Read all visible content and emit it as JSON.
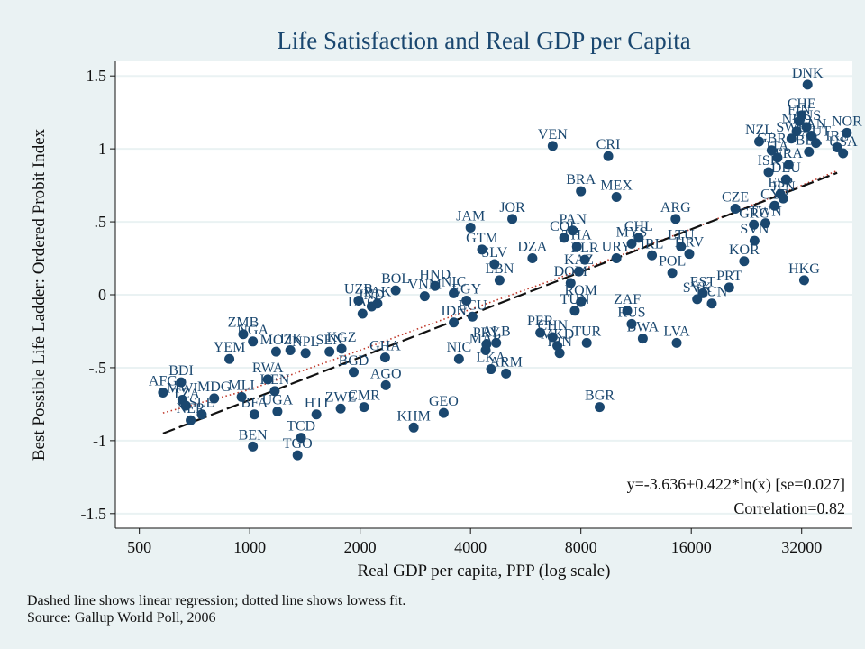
{
  "chart_data": {
    "type": "scatter",
    "title": "Life Satisfaction and Real GDP per Capita",
    "xlabel": "Real GDP per capita, PPP (log scale)",
    "ylabel": "Best Possible Life Ladder: Ordered Probit Index",
    "x_scale": "log",
    "xlim": [
      430,
      44000
    ],
    "ylim": [
      -1.6,
      1.6
    ],
    "x_ticks": [
      500,
      1000,
      2000,
      4000,
      8000,
      16000,
      32000
    ],
    "x_tick_labels": [
      "500",
      "1000",
      "2000",
      "4000",
      "8000",
      "16000",
      "32000"
    ],
    "y_ticks": [
      1.5,
      1,
      0.5,
      0,
      -0.5,
      -1,
      -1.5
    ],
    "y_tick_labels": [
      "1.5",
      "1",
      ".5",
      "0",
      "-.5",
      "-1",
      "-1.5"
    ],
    "grid": true,
    "marker_color": "#1a476f",
    "regression": {
      "label": "y=-3.636+0.422*ln(x) [se=0.027]",
      "intercept": -3.636,
      "slope": 0.422,
      "x_range": [
        580,
        40000
      ],
      "style": "dashed"
    },
    "correlation_label": "Correlation=0.82",
    "lowess": {
      "style": "dotted",
      "color": "#c0392b",
      "points": [
        [
          580,
          -0.81
        ],
        [
          1000,
          -0.65
        ],
        [
          2000,
          -0.38
        ],
        [
          4000,
          -0.1
        ],
        [
          8000,
          0.17
        ],
        [
          16000,
          0.45
        ],
        [
          32000,
          0.75
        ],
        [
          40000,
          0.85
        ]
      ]
    },
    "points": [
      {
        "label": "AFG",
        "x": 580,
        "y": -0.67
      },
      {
        "label": "MWI",
        "x": 655,
        "y": -0.72
      },
      {
        "label": "BDI",
        "x": 650,
        "y": -0.6
      },
      {
        "label": "TZA",
        "x": 670,
        "y": -0.76
      },
      {
        "label": "NER",
        "x": 690,
        "y": -0.86
      },
      {
        "label": "SLE",
        "x": 740,
        "y": -0.82
      },
      {
        "label": "MDG",
        "x": 800,
        "y": -0.71
      },
      {
        "label": "MLI",
        "x": 950,
        "y": -0.7
      },
      {
        "label": "BFA",
        "x": 1030,
        "y": -0.82
      },
      {
        "label": "BEN",
        "x": 1020,
        "y": -1.04
      },
      {
        "label": "YEM",
        "x": 880,
        "y": -0.44
      },
      {
        "label": "ZMB",
        "x": 960,
        "y": -0.27
      },
      {
        "label": "NGA",
        "x": 1020,
        "y": -0.32
      },
      {
        "label": "MOZ",
        "x": 1180,
        "y": -0.39
      },
      {
        "label": "RWA",
        "x": 1120,
        "y": -0.58
      },
      {
        "label": "KEN",
        "x": 1170,
        "y": -0.66
      },
      {
        "label": "UGA",
        "x": 1190,
        "y": -0.8
      },
      {
        "label": "HTI",
        "x": 1520,
        "y": -0.82
      },
      {
        "label": "TCD",
        "x": 1380,
        "y": -0.98
      },
      {
        "label": "TGO",
        "x": 1350,
        "y": -1.1
      },
      {
        "label": "TJK",
        "x": 1290,
        "y": -0.38
      },
      {
        "label": "KHM",
        "x": 2800,
        "y": -0.91
      },
      {
        "label": "NPL",
        "x": 1420,
        "y": -0.4
      },
      {
        "label": "SEN",
        "x": 1650,
        "y": -0.39
      },
      {
        "label": "KGZ",
        "x": 1780,
        "y": -0.37
      },
      {
        "label": "ZWE",
        "x": 1770,
        "y": -0.78
      },
      {
        "label": "CMR",
        "x": 2050,
        "y": -0.77
      },
      {
        "label": "BGD",
        "x": 1920,
        "y": -0.53
      },
      {
        "label": "GHA",
        "x": 2340,
        "y": -0.43
      },
      {
        "label": "AGO",
        "x": 2350,
        "y": -0.62
      },
      {
        "label": "GEO",
        "x": 3380,
        "y": -0.81
      },
      {
        "label": "UZB",
        "x": 1980,
        "y": -0.04
      },
      {
        "label": "LAO",
        "x": 2030,
        "y": -0.13
      },
      {
        "label": "IND",
        "x": 2150,
        "y": -0.08
      },
      {
        "label": "PAK",
        "x": 2230,
        "y": -0.06
      },
      {
        "label": "BOL",
        "x": 2500,
        "y": 0.03
      },
      {
        "label": "VNM",
        "x": 3000,
        "y": -0.01
      },
      {
        "label": "HND",
        "x": 3200,
        "y": 0.06
      },
      {
        "label": "NIC",
        "x": 3600,
        "y": 0.01
      },
      {
        "label": "EGY",
        "x": 3900,
        "y": -0.04
      },
      {
        "label": "IDN",
        "x": 3600,
        "y": -0.19
      },
      {
        "label": "ECU",
        "x": 4050,
        "y": -0.15
      },
      {
        "label": "NIC",
        "x": 3720,
        "y": -0.44
      },
      {
        "label": "PRY",
        "x": 4420,
        "y": -0.34
      },
      {
        "label": "ALB",
        "x": 4700,
        "y": -0.33
      },
      {
        "label": "MAR",
        "x": 4400,
        "y": -0.38
      },
      {
        "label": "LKA",
        "x": 4550,
        "y": -0.51
      },
      {
        "label": "ARM",
        "x": 5000,
        "y": -0.54
      },
      {
        "label": "JAM",
        "x": 4000,
        "y": 0.46
      },
      {
        "label": "GTM",
        "x": 4300,
        "y": 0.31
      },
      {
        "label": "SLV",
        "x": 4650,
        "y": 0.21
      },
      {
        "label": "LBN",
        "x": 4800,
        "y": 0.1
      },
      {
        "label": "JOR",
        "x": 5200,
        "y": 0.52
      },
      {
        "label": "DZA",
        "x": 5900,
        "y": 0.25
      },
      {
        "label": "PER",
        "x": 6200,
        "y": -0.26
      },
      {
        "label": "CHN",
        "x": 6700,
        "y": -0.29
      },
      {
        "label": "IRN",
        "x": 7000,
        "y": -0.4
      },
      {
        "label": "MKD",
        "x": 6900,
        "y": -0.35
      },
      {
        "label": "VEN",
        "x": 6700,
        "y": 1.02
      },
      {
        "label": "CRI",
        "x": 9500,
        "y": 0.95
      },
      {
        "label": "BRA",
        "x": 8000,
        "y": 0.71
      },
      {
        "label": "MEX",
        "x": 10000,
        "y": 0.67
      },
      {
        "label": "PAN",
        "x": 7600,
        "y": 0.44
      },
      {
        "label": "COL",
        "x": 7200,
        "y": 0.39
      },
      {
        "label": "THA",
        "x": 7800,
        "y": 0.33
      },
      {
        "label": "BLR",
        "x": 8200,
        "y": 0.24
      },
      {
        "label": "KAZ",
        "x": 7900,
        "y": 0.16
      },
      {
        "label": "DOM",
        "x": 7500,
        "y": 0.08
      },
      {
        "label": "ROM",
        "x": 8000,
        "y": -0.05
      },
      {
        "label": "TUN",
        "x": 7700,
        "y": -0.11
      },
      {
        "label": "TUR",
        "x": 8300,
        "y": -0.33
      },
      {
        "label": "BGR",
        "x": 9000,
        "y": -0.77
      },
      {
        "label": "ZAF",
        "x": 10700,
        "y": -0.11
      },
      {
        "label": "RUS",
        "x": 11000,
        "y": -0.2
      },
      {
        "label": "BWA",
        "x": 11800,
        "y": -0.3
      },
      {
        "label": "LVA",
        "x": 14600,
        "y": -0.33
      },
      {
        "label": "CHL",
        "x": 11500,
        "y": 0.39
      },
      {
        "label": "MYS",
        "x": 11000,
        "y": 0.35
      },
      {
        "label": "URY",
        "x": 10000,
        "y": 0.25
      },
      {
        "label": "IRL",
        "x": 12500,
        "y": 0.27
      },
      {
        "label": "ARG",
        "x": 14500,
        "y": 0.52
      },
      {
        "label": "LTU",
        "x": 15000,
        "y": 0.33
      },
      {
        "label": "HRV",
        "x": 15800,
        "y": 0.28
      },
      {
        "label": "POL",
        "x": 14200,
        "y": 0.15
      },
      {
        "label": "SVK",
        "x": 16600,
        "y": -0.03
      },
      {
        "label": "EST",
        "x": 17200,
        "y": 0.01
      },
      {
        "label": "HUN",
        "x": 18200,
        "y": -0.06
      },
      {
        "label": "PRT",
        "x": 20300,
        "y": 0.05
      },
      {
        "label": "CZE",
        "x": 21100,
        "y": 0.59
      },
      {
        "label": "GRC",
        "x": 23700,
        "y": 0.48
      },
      {
        "label": "SVN",
        "x": 23800,
        "y": 0.37
      },
      {
        "label": "KOR",
        "x": 22300,
        "y": 0.23
      },
      {
        "label": "TWN",
        "x": 25500,
        "y": 0.49
      },
      {
        "label": "CYP",
        "x": 27000,
        "y": 0.61
      },
      {
        "label": "HKG",
        "x": 32500,
        "y": 0.1
      },
      {
        "label": "ITA",
        "x": 27500,
        "y": 0.94
      },
      {
        "label": "ISR",
        "x": 26000,
        "y": 0.84
      },
      {
        "label": "ESP",
        "x": 28000,
        "y": 0.69
      },
      {
        "label": "JPN",
        "x": 28500,
        "y": 0.66
      },
      {
        "label": "DEU",
        "x": 29000,
        "y": 0.79
      },
      {
        "label": "FRA",
        "x": 29500,
        "y": 0.89
      },
      {
        "label": "NZL",
        "x": 24500,
        "y": 1.05
      },
      {
        "label": "GBR",
        "x": 26500,
        "y": 0.99
      },
      {
        "label": "SWE",
        "x": 30000,
        "y": 1.07
      },
      {
        "label": "FIN",
        "x": 31500,
        "y": 1.19
      },
      {
        "label": "DNK",
        "x": 33200,
        "y": 1.44
      },
      {
        "label": "CHE",
        "x": 32000,
        "y": 1.23
      },
      {
        "label": "NLD",
        "x": 31000,
        "y": 1.12
      },
      {
        "label": "AUS",
        "x": 33000,
        "y": 1.15
      },
      {
        "label": "CAN",
        "x": 34000,
        "y": 1.09
      },
      {
        "label": "BEL",
        "x": 33500,
        "y": 0.98
      },
      {
        "label": "AUT",
        "x": 35000,
        "y": 1.04
      },
      {
        "label": "NOR",
        "x": 42500,
        "y": 1.11
      },
      {
        "label": "USA",
        "x": 41500,
        "y": 0.97
      },
      {
        "label": "IRL",
        "x": 40000,
        "y": 1.01
      }
    ]
  },
  "notes": {
    "line1": "Dashed line shows linear regression; dotted line shows lowess fit.",
    "line2": "Source: Gallup World Poll, 2006"
  }
}
